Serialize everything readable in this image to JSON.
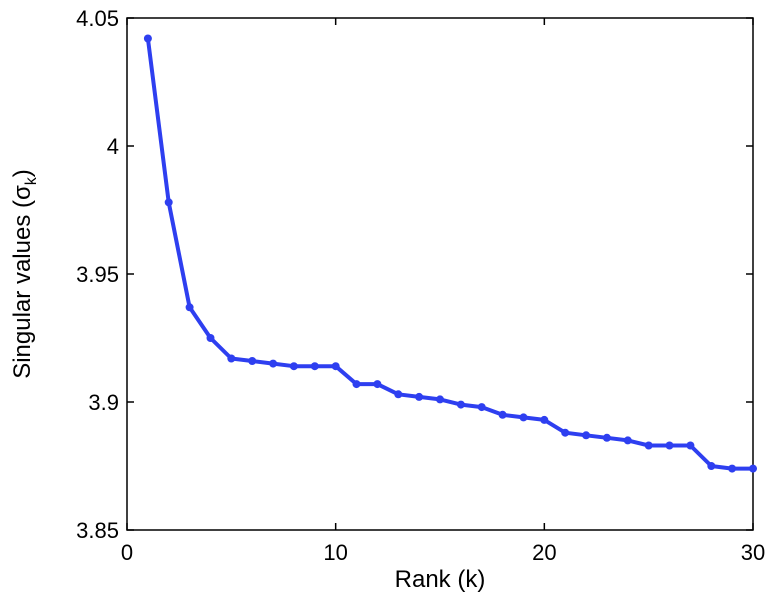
{
  "chart_data": {
    "type": "line",
    "title": "",
    "xlabel": "Rank (k)",
    "ylabel": {
      "prefix": "Singular values (σ",
      "subscript": "k",
      "suffix": ")"
    },
    "xlim": [
      0,
      30
    ],
    "ylim": [
      3.85,
      4.05
    ],
    "xticks": [
      0,
      10,
      20,
      30
    ],
    "yticks": [
      3.85,
      3.9,
      3.95,
      4,
      4.05
    ],
    "xtick_labels": [
      "0",
      "10",
      "20",
      "30"
    ],
    "ytick_labels": [
      "3.85",
      "3.9",
      "3.95",
      "4",
      "4.05"
    ],
    "grid": false,
    "line_color": "#2e3ff0",
    "series": [
      {
        "x": [
          1,
          2,
          3,
          4,
          5,
          6,
          7,
          8,
          9,
          10,
          11,
          12,
          13,
          14,
          15,
          16,
          17,
          18,
          19,
          20,
          21,
          22,
          23,
          24,
          25,
          26,
          27,
          28,
          29,
          30
        ],
        "values": [
          4.042,
          3.978,
          3.937,
          3.925,
          3.917,
          3.916,
          3.915,
          3.914,
          3.914,
          3.914,
          3.907,
          3.907,
          3.903,
          3.902,
          3.901,
          3.899,
          3.898,
          3.895,
          3.894,
          3.893,
          3.888,
          3.887,
          3.886,
          3.885,
          3.883,
          3.883,
          3.883,
          3.875,
          3.874,
          3.874
        ]
      }
    ]
  }
}
